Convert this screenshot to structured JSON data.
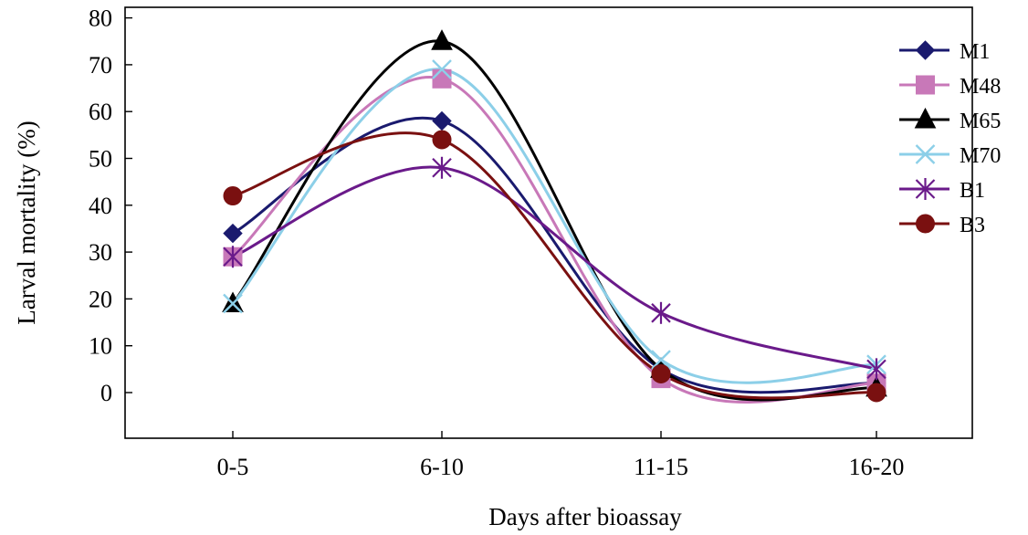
{
  "chart_data": {
    "type": "line",
    "xlabel": "Days after bioassay",
    "ylabel": "Larval mortality (%)",
    "categories": [
      "0-5",
      "6-10",
      "11-15",
      "16-20"
    ],
    "ylim": [
      -10,
      80
    ],
    "yticks": [
      0,
      10,
      20,
      30,
      40,
      50,
      60,
      70,
      80
    ],
    "grid": false,
    "legend_position": "top-right",
    "series": [
      {
        "name": "M1",
        "values": [
          34,
          58,
          5,
          2
        ],
        "color": "#1a1a6e",
        "marker": "diamond"
      },
      {
        "name": "M48",
        "values": [
          29,
          67,
          3,
          2
        ],
        "color": "#c878b8",
        "marker": "square"
      },
      {
        "name": "M65",
        "values": [
          19,
          75,
          5,
          1
        ],
        "color": "#000000",
        "marker": "triangle"
      },
      {
        "name": "M70",
        "values": [
          19,
          69,
          7,
          6
        ],
        "color": "#8ccfe8",
        "marker": "x"
      },
      {
        "name": "B1",
        "values": [
          29,
          48,
          17,
          5
        ],
        "color": "#6a1a8a",
        "marker": "asterisk"
      },
      {
        "name": "B3",
        "values": [
          42,
          54,
          4,
          0
        ],
        "color": "#7a1010",
        "marker": "circle"
      }
    ]
  }
}
